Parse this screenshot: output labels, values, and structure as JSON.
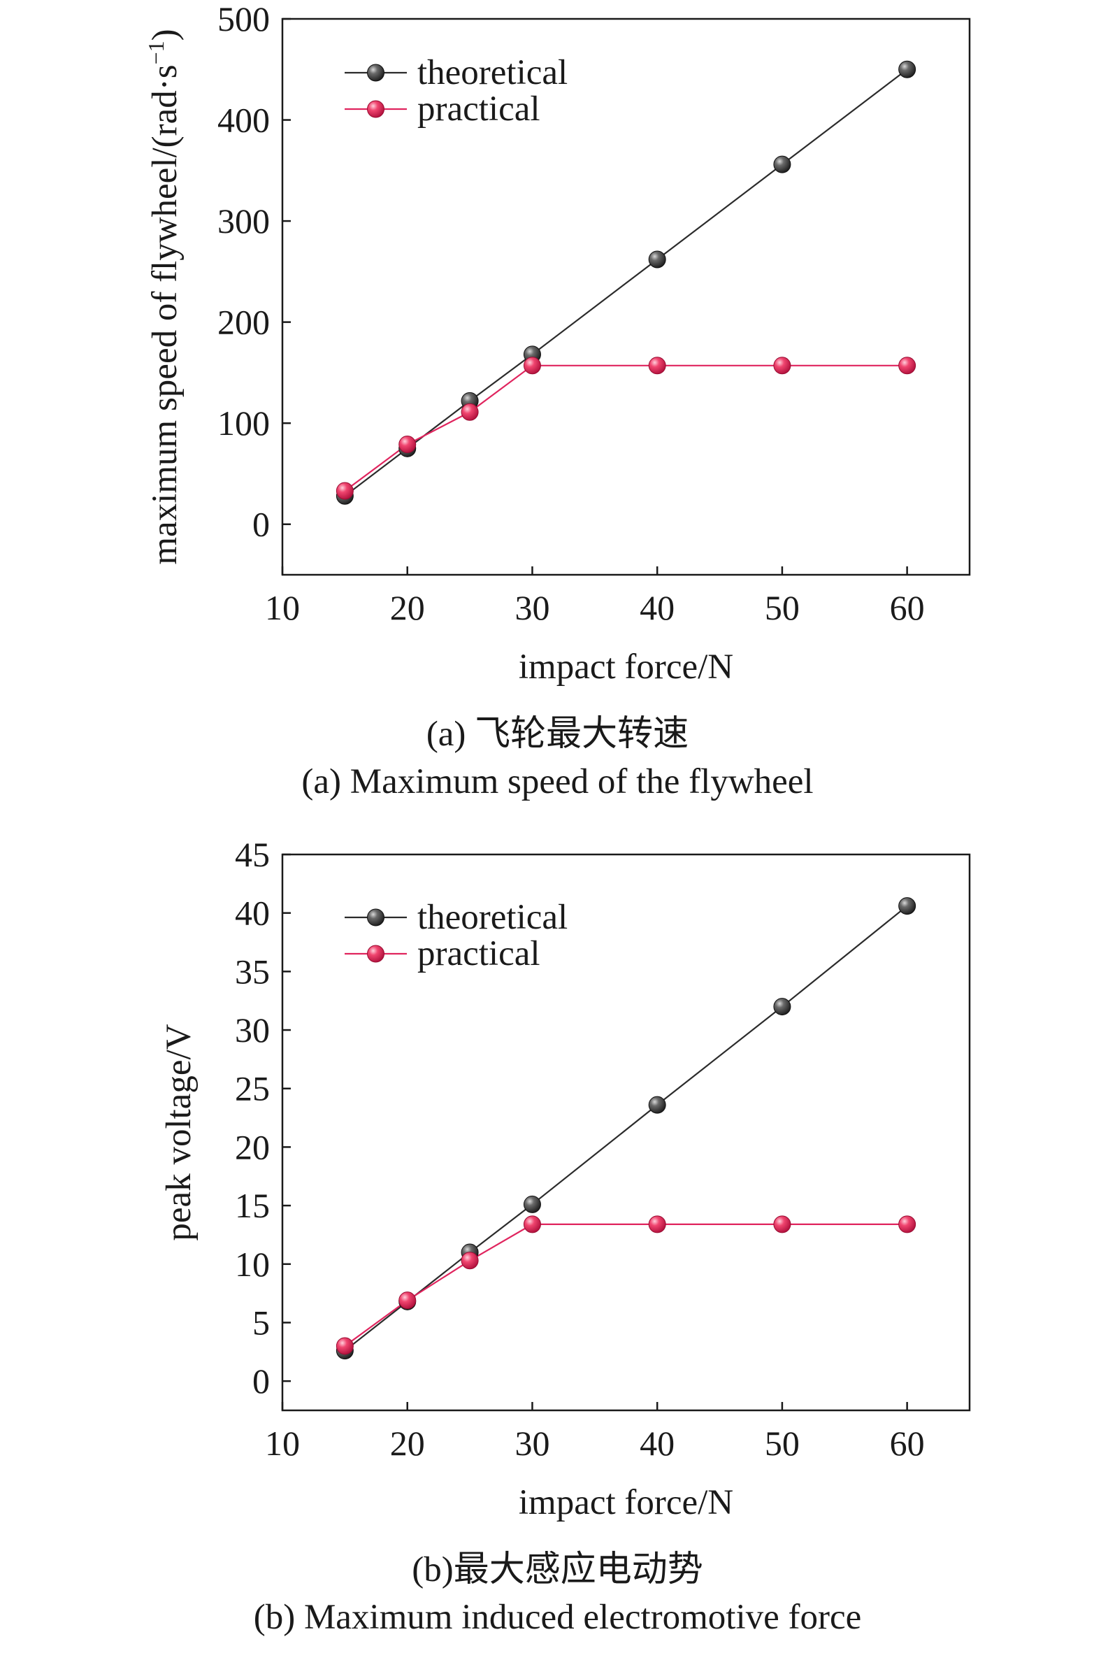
{
  "chart_data": [
    {
      "type": "line",
      "panel": "a",
      "caption_cn": "(a) 飞轮最大转速",
      "caption_en": "(a) Maximum speed of the flywheel",
      "xlabel": "impact force/N",
      "ylabel_main": "maximum speed of flywheel/(rad·s",
      "ylabel_sup": "−1",
      "ylabel_close": ")",
      "xlim": [
        10,
        65
      ],
      "ylim": [
        -50,
        500
      ],
      "xticks": [
        10,
        20,
        30,
        40,
        50,
        60
      ],
      "yticks": [
        0,
        100,
        200,
        300,
        400,
        500
      ],
      "grid": false,
      "legend_position": "top-left",
      "x": [
        15,
        20,
        25,
        30,
        40,
        50,
        60
      ],
      "series": [
        {
          "name": "theoretical",
          "color": "#2b2b2b",
          "values": [
            28,
            75,
            122,
            168,
            262,
            356,
            450
          ]
        },
        {
          "name": "practical",
          "color": "#e0245e",
          "values": [
            33,
            79,
            111,
            157,
            157,
            157,
            157
          ]
        }
      ]
    },
    {
      "type": "line",
      "panel": "b",
      "caption_cn": "(b)最大感应电动势",
      "caption_en": "(b) Maximum induced electromotive force",
      "xlabel": "impact force/N",
      "ylabel_main": "peak voltage/V",
      "ylabel_sup": "",
      "ylabel_close": "",
      "xlim": [
        10,
        65
      ],
      "ylim": [
        -2.5,
        45
      ],
      "xticks": [
        10,
        20,
        30,
        40,
        50,
        60
      ],
      "yticks": [
        0,
        5,
        10,
        15,
        20,
        25,
        30,
        35,
        40,
        45
      ],
      "grid": false,
      "legend_position": "top-left",
      "x": [
        15,
        20,
        25,
        30,
        40,
        50,
        60
      ],
      "series": [
        {
          "name": "theoretical",
          "color": "#2b2b2b",
          "values": [
            2.6,
            6.8,
            11.0,
            15.1,
            23.6,
            32.0,
            40.6
          ]
        },
        {
          "name": "practical",
          "color": "#e0245e",
          "values": [
            3.0,
            6.9,
            10.3,
            13.4,
            13.4,
            13.4,
            13.4
          ]
        }
      ]
    }
  ]
}
